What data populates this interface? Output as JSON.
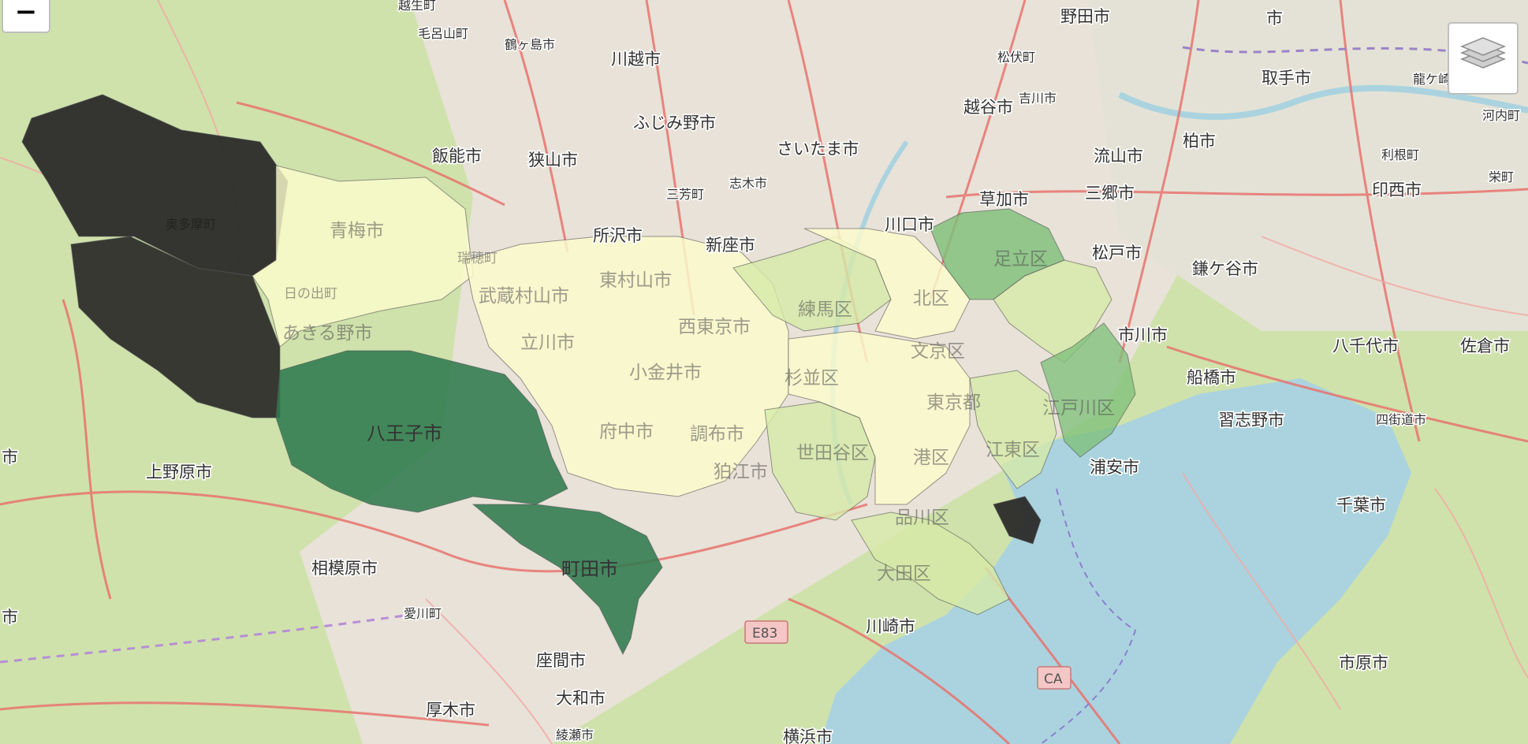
{
  "controls": {
    "zoom_out_label": "−",
    "layers_icon": "layers-icon"
  },
  "colors": {
    "land": "#c9dfa6",
    "water": "#aad3df",
    "choropleth_darkest": "#2b2b29",
    "choropleth_dark_green": "#2f7a4f",
    "choropleth_medium_green": "#7fc07a",
    "choropleth_light_green": "#d6eaa8",
    "choropleth_pale": "#fbfbcc",
    "road": "#e8736f"
  },
  "labels": {
    "kumagaya": "越生町",
    "moroyama": "毛呂山町",
    "tsurugashima": "鶴ヶ島市",
    "kawagoe": "川越市",
    "noda": "野田市",
    "ichi_top": "市",
    "matsubushi": "松伏町",
    "toride": "取手市",
    "ryugasaki": "龍ケ崎",
    "yoshikawa": "吉川市",
    "koshigaya": "越谷市",
    "kawachi": "河内町",
    "fujimino": "ふじみ野市",
    "saitama": "さいたま市",
    "hanno": "飯能市",
    "sayama": "狭山市",
    "miyoshi": "三芳町",
    "shiki": "志木市",
    "nagareyama": "流山市",
    "kashiwa": "柏市",
    "tone": "利根町",
    "sakae": "栄町",
    "inzai": "印西市",
    "soka": "草加市",
    "misato": "三郷市",
    "okutama": "奥多摩町",
    "ome": "青梅市",
    "tokorozawa": "所沢市",
    "niiza": "新座市",
    "kawaguchi": "川口市",
    "adachi": "足立区",
    "matsudo": "松戸市",
    "kamagaya": "鎌ケ谷市",
    "mizuho": "瑞穂町",
    "hinode": "日の出町",
    "musashimurayama": "武蔵村山市",
    "higashimurayama": "東村山市",
    "nerima": "練馬区",
    "kita": "北区",
    "akiruno": "あきる野市",
    "tachikawa": "立川市",
    "higashikurume": "西東京市",
    "bunkyo": "文京区",
    "ichikawa": "市川市",
    "yachiyo": "八千代市",
    "sakura": "佐倉市",
    "koganei": "小金井市",
    "suginami": "杉並区",
    "funabashi": "船橋市",
    "narashino": "習志野市",
    "yotsukaido": "四街道市",
    "hachioji": "八王子市",
    "fuchu": "府中市",
    "chofu": "調布市",
    "tokyo": "東京都",
    "edogawa": "江戸川区",
    "ichi_left": "市",
    "setagaya": "世田谷区",
    "minato": "港区",
    "koto": "江東区",
    "uenohara": "上野原市",
    "komae": "狛江市",
    "urayasu": "浦安市",
    "chiba": "千葉市",
    "shinagawa": "品川区",
    "sagamihara": "相模原市",
    "machida": "町田市",
    "ota": "大田区",
    "ichi_left2": "市",
    "aikawa": "愛川町",
    "e83": "E83",
    "kawasaki": "川崎市",
    "zama": "座間市",
    "ca": "CA",
    "ichihara": "市原市",
    "yamato": "大和市",
    "atsugi": "厚木市",
    "ayase": "綾瀬市",
    "yokohama": "横浜市"
  }
}
